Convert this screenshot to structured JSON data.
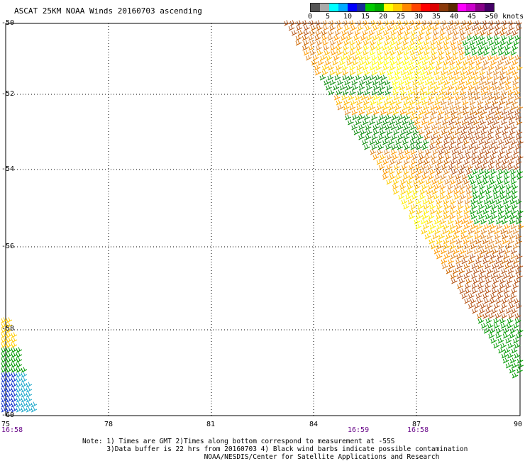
{
  "title": "ASCAT 25KM NOAA Winds 20160703 ascending",
  "scale": {
    "colors": [
      "#555555",
      "#aaaaaa",
      "#00ffff",
      "#00aaff",
      "#0000ff",
      "#1a2a9a",
      "#00cc00",
      "#00aa00",
      "#ffff00",
      "#ffcc00",
      "#ff8800",
      "#ff4400",
      "#ff0000",
      "#dd0000",
      "#8b3a0a",
      "#5a2a00",
      "#ff00ff",
      "#cc00cc",
      "#880088",
      "#440066"
    ],
    "labels": [
      "0",
      "5",
      "10",
      "15",
      "20",
      "25",
      "30",
      "35",
      "40",
      "45",
      ">50 knots"
    ]
  },
  "map": {
    "lat_labels": [
      "-50",
      "-52",
      "-54",
      "-56",
      "-58",
      "-60"
    ],
    "lon_labels": [
      "75",
      "78",
      "81",
      "84",
      "87",
      "90"
    ]
  },
  "times": [
    "16:58",
    "16:59",
    "16:58"
  ],
  "notes": [
    "Note: 1) Times are GMT 2)Times along bottom correspond to measurement at -55S",
    "      3)Data buffer is 22 hrs from 20160703 4) Black wind barbs indicate possible contamination",
    "                              NOAA/NESDIS/Center for Satellite Applications and Research"
  ]
}
